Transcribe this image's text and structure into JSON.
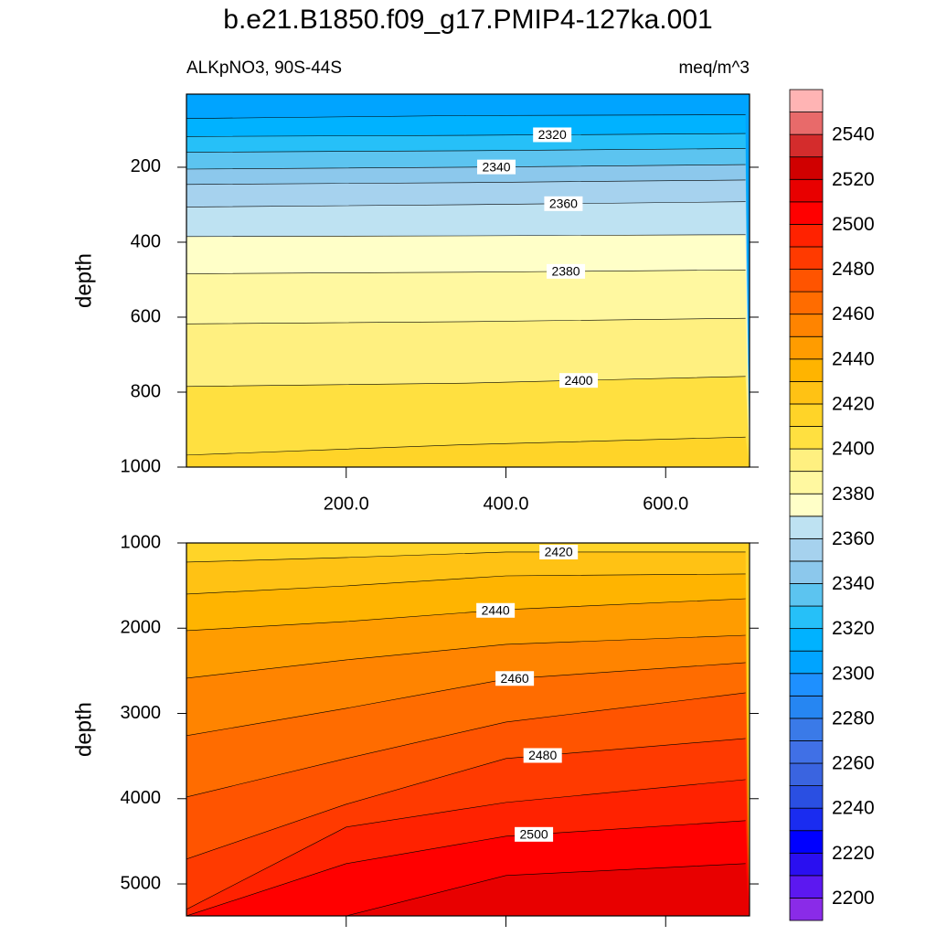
{
  "title": "b.e21.B1850.f09_g17.PMIP4-127ka.001",
  "chart_data": [
    {
      "type": "contour",
      "left_string": "ALKpNO3, 90S-44S",
      "right_string": "meq/m^3",
      "ylabel": "depth",
      "x": [
        0,
        350,
        700
      ],
      "xlim": [
        0,
        705
      ],
      "ylim": [
        5,
        1000
      ],
      "y_reversed": true,
      "yticks": [
        200,
        400,
        600,
        800,
        1000
      ],
      "xticks": [
        {
          "value": 200,
          "label": "200.0"
        },
        {
          "value": 400,
          "label": "400.0"
        },
        {
          "value": 600,
          "label": "600.0"
        }
      ],
      "contours": [
        {
          "level": 2310,
          "depth": [
            70,
            62,
            60
          ],
          "labeled": false
        },
        {
          "level": 2320,
          "depth": [
            118,
            115,
            110
          ],
          "labeled": true
        },
        {
          "level": 2330,
          "depth": [
            160,
            156,
            150
          ],
          "labeled": false
        },
        {
          "level": 2340,
          "depth": [
            205,
            200,
            193
          ],
          "labeled": true
        },
        {
          "level": 2350,
          "depth": [
            246,
            241,
            234
          ],
          "labeled": false
        },
        {
          "level": 2360,
          "depth": [
            306,
            300,
            292
          ],
          "labeled": true
        },
        {
          "level": 2370,
          "depth": [
            385,
            383,
            380
          ],
          "labeled": false
        },
        {
          "level": 2380,
          "depth": [
            484,
            480,
            474
          ],
          "labeled": true
        },
        {
          "level": 2390,
          "depth": [
            618,
            612,
            603
          ],
          "labeled": false
        },
        {
          "level": 2400,
          "depth": [
            785,
            776,
            758
          ],
          "labeled": true
        },
        {
          "level": 2410,
          "depth": [
            968,
            940,
            920
          ],
          "labeled": false
        }
      ]
    },
    {
      "type": "contour",
      "ylabel": "depth",
      "x": [
        0,
        200,
        400,
        700
      ],
      "xlim": [
        0,
        705
      ],
      "ylim": [
        1000,
        5375
      ],
      "y_reversed": true,
      "yticks": [
        1000,
        2000,
        3000,
        4000,
        5000
      ],
      "xticks": [
        200,
        400,
        600
      ],
      "xtick_labels": false,
      "contours": [
        {
          "level": 2420,
          "depth": [
            1225,
            1171,
            1107,
            1107
          ],
          "labeled": true
        },
        {
          "level": 2430,
          "depth": [
            1600,
            1504,
            1386,
            1364
          ],
          "labeled": false
        },
        {
          "level": 2440,
          "depth": [
            2029,
            1922,
            1782,
            1654
          ],
          "labeled": true
        },
        {
          "level": 2450,
          "depth": [
            2586,
            2372,
            2190,
            2083
          ],
          "labeled": false
        },
        {
          "level": 2460,
          "depth": [
            3261,
            2940,
            2597,
            2404
          ],
          "labeled": true
        },
        {
          "level": 2470,
          "depth": [
            3980,
            3529,
            3101,
            2758
          ],
          "labeled": false
        },
        {
          "level": 2480,
          "depth": [
            4708,
            4065,
            3529,
            3294
          ],
          "labeled": true
        },
        {
          "level": 2490,
          "depth": [
            5298,
            4333,
            4044,
            3776
          ],
          "labeled": false
        },
        {
          "level": 2500,
          "depth": [
            5375,
            4762,
            4440,
            4258
          ],
          "labeled": true
        },
        {
          "level": 2510,
          "depth": [
            5375,
            5375,
            4901,
            4762
          ],
          "labeled": false
        }
      ]
    }
  ],
  "colorbar": {
    "levels": [
      2200,
      2210,
      2220,
      2230,
      2240,
      2250,
      2260,
      2270,
      2280,
      2290,
      2300,
      2310,
      2320,
      2330,
      2340,
      2350,
      2360,
      2370,
      2380,
      2390,
      2400,
      2410,
      2420,
      2430,
      2440,
      2450,
      2460,
      2470,
      2480,
      2490,
      2500,
      2510,
      2520,
      2530,
      2540,
      2550
    ],
    "colors": [
      "#8a2be8",
      "#5c18f0",
      "#2a0ff0",
      "#0000ff",
      "#1a2cf0",
      "#2a4fe2",
      "#3a64e0",
      "#4070e6",
      "#3a7ae8",
      "#2686f2",
      "#1e90ff",
      "#00a4ff",
      "#00b2ff",
      "#26c0f8",
      "#5cc4f0",
      "#8cc8ec",
      "#a6d2ee",
      "#bee2f2",
      "#ffffc8",
      "#fff8a0",
      "#fff080",
      "#ffe040",
      "#ffd428",
      "#ffc214",
      "#ffb400",
      "#ff9c00",
      "#ff8400",
      "#ff6c00",
      "#ff5400",
      "#ff3a00",
      "#ff2200",
      "#ff0000",
      "#e80000",
      "#d00000",
      "#d42c2c",
      "#e86a6a",
      "#ffb4b4"
    ]
  }
}
